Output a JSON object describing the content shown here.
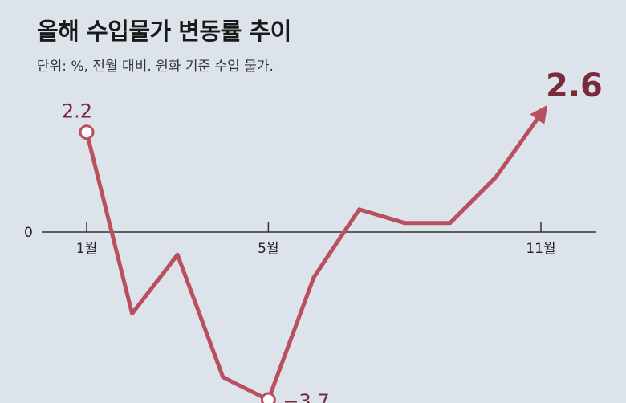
{
  "title": "올해 수입물가 변동률 추이",
  "subtitle": "단위: %, 전월 대비. 원화 기준 수입 물가.",
  "colors": {
    "line": "#b9505f",
    "label": "#7a2a3a",
    "background": "#dde3ea",
    "axis": "#333333"
  },
  "chart_data": {
    "type": "line",
    "title": "올해 수입물가 변동률 추이",
    "x": [
      1,
      2,
      3,
      4,
      5,
      6,
      7,
      8,
      9,
      10,
      11
    ],
    "values": [
      2.2,
      -1.8,
      -0.5,
      -3.2,
      -3.7,
      -1.0,
      0.5,
      0.2,
      0.2,
      1.2,
      2.6
    ],
    "xticks": [
      {
        "x": 1,
        "label": "1월"
      },
      {
        "x": 5,
        "label": "5월"
      },
      {
        "x": 11,
        "label": "11월"
      }
    ],
    "yticks": [
      {
        "y": 0,
        "label": "0"
      }
    ],
    "data_labels": [
      {
        "x": 1,
        "label": "2.2"
      },
      {
        "x": 5,
        "label": "−3.7"
      },
      {
        "x": 11,
        "label": "2.6"
      }
    ],
    "ylim": [
      -3.7,
      2.2
    ],
    "grid": false,
    "legend": "none"
  }
}
